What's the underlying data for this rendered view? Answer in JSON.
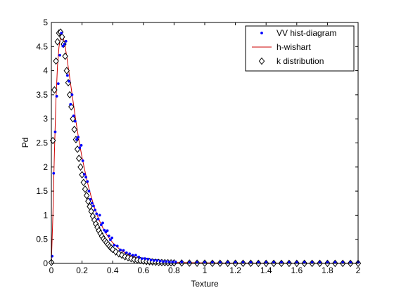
{
  "chart_data": {
    "type": "scatter",
    "xlabel": "Texture",
    "ylabel": "Pd",
    "xlim": [
      0,
      2
    ],
    "ylim": [
      0,
      5
    ],
    "xticks": [
      "0",
      "0.2",
      "0.4",
      "0.6",
      "0.8",
      "1",
      "1.2",
      "1.4",
      "1.6",
      "1.8",
      "2"
    ],
    "yticks": [
      "0",
      "0.5",
      "1",
      "1.5",
      "2",
      "2.5",
      "3",
      "3.5",
      "4",
      "4.5",
      "5"
    ],
    "grid": false,
    "legend_position": "top-right",
    "series": [
      {
        "name": "VV hist-diagram",
        "marker": "dot",
        "color": "#0000ff",
        "x": [
          0.005,
          0.015,
          0.025,
          0.035,
          0.045,
          0.055,
          0.065,
          0.075,
          0.085,
          0.095,
          0.105,
          0.115,
          0.125,
          0.135,
          0.145,
          0.155,
          0.165,
          0.175,
          0.185,
          0.195,
          0.205,
          0.215,
          0.225,
          0.235,
          0.245,
          0.255,
          0.265,
          0.275,
          0.285,
          0.295,
          0.305,
          0.315,
          0.325,
          0.335,
          0.345,
          0.355,
          0.365,
          0.375,
          0.385,
          0.395,
          0.41,
          0.43,
          0.45,
          0.47,
          0.49,
          0.51,
          0.53,
          0.55,
          0.57,
          0.59,
          0.61,
          0.63,
          0.65,
          0.67,
          0.69,
          0.71,
          0.73,
          0.75,
          0.77,
          0.79,
          0.81,
          0.85,
          0.9,
          0.95,
          1.0,
          1.05,
          1.1,
          1.15,
          1.2,
          1.25,
          1.3,
          1.35,
          1.4,
          1.45,
          1.5,
          1.55,
          1.6,
          1.65,
          1.7,
          1.75,
          1.8,
          1.85,
          1.9,
          1.95,
          2.0
        ],
        "y": [
          0.15,
          1.87,
          2.73,
          3.47,
          3.73,
          4.32,
          4.78,
          4.51,
          4.55,
          4.61,
          3.9,
          3.78,
          3.3,
          3.5,
          3.06,
          2.95,
          2.57,
          2.62,
          2.4,
          2.45,
          2.13,
          1.85,
          1.79,
          1.7,
          1.5,
          1.33,
          1.25,
          1.19,
          1.11,
          1.03,
          0.92,
          1.0,
          0.8,
          0.84,
          0.69,
          0.65,
          0.68,
          0.57,
          0.49,
          0.53,
          0.38,
          0.36,
          0.28,
          0.27,
          0.22,
          0.2,
          0.17,
          0.17,
          0.13,
          0.1,
          0.1,
          0.09,
          0.07,
          0.06,
          0.06,
          0.05,
          0.04,
          0.04,
          0.03,
          0.03,
          0.03,
          0.03,
          0.02,
          0.02,
          0.02,
          0.02,
          0.02,
          0.02,
          0.02,
          0.02,
          0.02,
          0.02,
          0.02,
          0.02,
          0.02,
          0.02,
          0.02,
          0.02,
          0.02,
          0.02,
          0.02,
          0.02,
          0.02,
          0.02,
          0.02
        ]
      },
      {
        "name": "h-wishart",
        "marker": "line",
        "color": "#cc0000",
        "x": [
          0.0,
          0.01,
          0.02,
          0.03,
          0.04,
          0.05,
          0.06,
          0.07,
          0.08,
          0.09,
          0.1,
          0.12,
          0.14,
          0.16,
          0.18,
          0.2,
          0.22,
          0.24,
          0.26,
          0.28,
          0.3,
          0.32,
          0.34,
          0.36,
          0.38,
          0.4,
          0.45,
          0.5,
          0.55,
          0.6,
          0.65,
          0.7,
          0.8,
          0.9,
          1.0,
          1.2,
          1.4,
          1.6,
          1.8,
          2.0
        ],
        "y": [
          0.0,
          1.0,
          2.3,
          3.4,
          4.1,
          4.5,
          4.7,
          4.75,
          4.65,
          4.5,
          4.3,
          3.85,
          3.4,
          2.95,
          2.55,
          2.2,
          1.9,
          1.62,
          1.38,
          1.17,
          0.99,
          0.84,
          0.71,
          0.6,
          0.51,
          0.43,
          0.28,
          0.18,
          0.12,
          0.08,
          0.055,
          0.04,
          0.02,
          0.015,
          0.01,
          0.005,
          0.003,
          0.002,
          0.001,
          0.001
        ]
      },
      {
        "name": "k distribution",
        "marker": "diamond",
        "color": "#000000",
        "x": [
          0.0,
          0.01,
          0.02,
          0.03,
          0.04,
          0.05,
          0.06,
          0.07,
          0.08,
          0.09,
          0.1,
          0.11,
          0.12,
          0.13,
          0.14,
          0.15,
          0.16,
          0.17,
          0.18,
          0.19,
          0.2,
          0.21,
          0.22,
          0.23,
          0.24,
          0.25,
          0.26,
          0.27,
          0.28,
          0.29,
          0.3,
          0.31,
          0.32,
          0.33,
          0.34,
          0.35,
          0.36,
          0.37,
          0.38,
          0.39,
          0.4,
          0.42,
          0.44,
          0.46,
          0.48,
          0.5,
          0.52,
          0.54,
          0.56,
          0.58,
          0.6,
          0.62,
          0.64,
          0.66,
          0.68,
          0.7,
          0.72,
          0.74,
          0.76,
          0.78,
          0.8,
          0.85,
          0.9,
          0.95,
          1.0,
          1.05,
          1.1,
          1.15,
          1.2,
          1.25,
          1.3,
          1.35,
          1.4,
          1.45,
          1.5,
          1.55,
          1.6,
          1.65,
          1.7,
          1.75,
          1.8,
          1.85,
          1.9,
          1.95,
          2.0
        ],
        "y": [
          0.02,
          2.55,
          3.6,
          4.2,
          4.6,
          4.78,
          4.8,
          4.7,
          4.55,
          4.3,
          4.0,
          3.75,
          3.5,
          3.25,
          3.0,
          2.78,
          2.57,
          2.37,
          2.18,
          2.0,
          1.84,
          1.68,
          1.54,
          1.41,
          1.29,
          1.18,
          1.08,
          0.98,
          0.9,
          0.82,
          0.75,
          0.68,
          0.62,
          0.56,
          0.51,
          0.47,
          0.43,
          0.39,
          0.35,
          0.32,
          0.29,
          0.24,
          0.2,
          0.17,
          0.14,
          0.12,
          0.1,
          0.08,
          0.07,
          0.06,
          0.05,
          0.04,
          0.035,
          0.03,
          0.025,
          0.02,
          0.018,
          0.015,
          0.013,
          0.011,
          0.01,
          0.008,
          0.006,
          0.005,
          0.004,
          0.003,
          0.003,
          0.002,
          0.002,
          0.002,
          0.002,
          0.001,
          0.001,
          0.001,
          0.001,
          0.001,
          0.001,
          0.001,
          0.001,
          0.001,
          0.001,
          0.001,
          0.001,
          0.001,
          0.001
        ]
      }
    ]
  }
}
